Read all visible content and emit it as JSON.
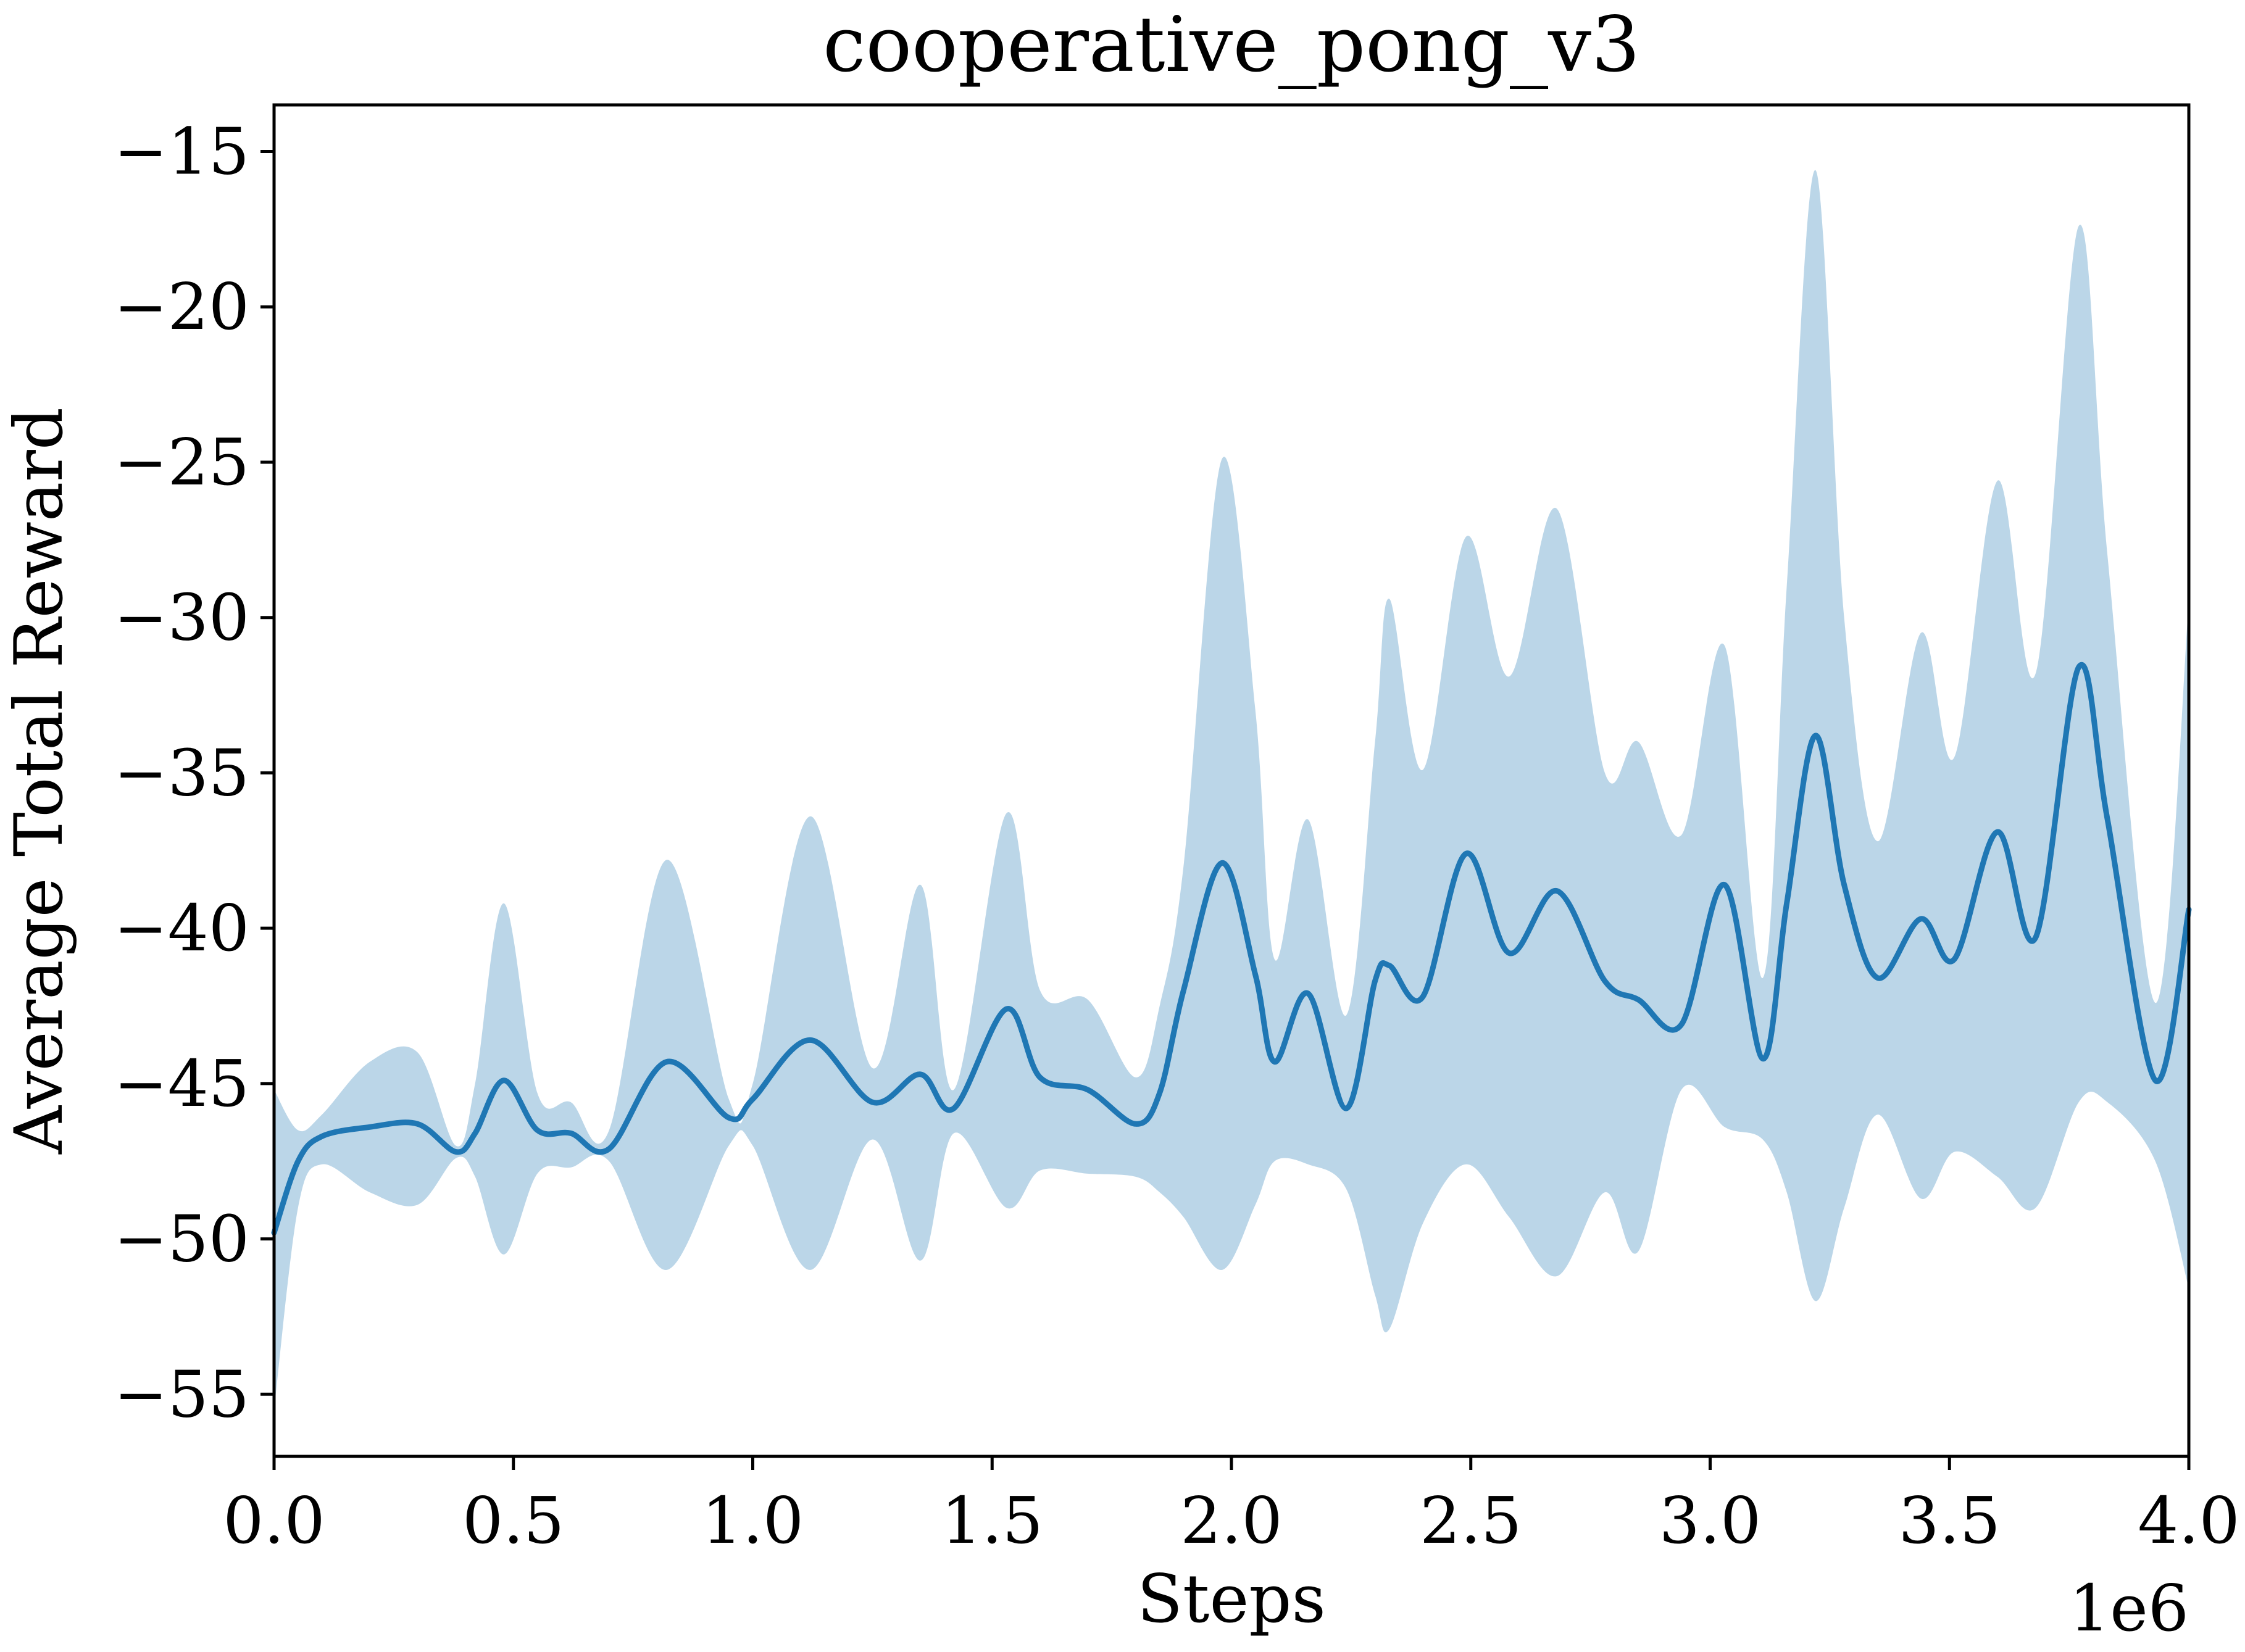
{
  "chart_data": {
    "type": "line",
    "title": "cooperative_pong_v3",
    "xlabel": "Steps",
    "ylabel": "Average Total Reward",
    "x_offset_label": "1e6",
    "xlim": [
      0,
      4000000
    ],
    "ylim": [
      -57,
      -13.5
    ],
    "grid": false,
    "legend": "none",
    "x_ticks": [
      0,
      500000,
      1000000,
      1500000,
      2000000,
      2500000,
      3000000,
      3500000,
      4000000
    ],
    "x_tick_labels": [
      "0.0",
      "0.5",
      "1.0",
      "1.5",
      "2.0",
      "2.5",
      "3.0",
      "3.5",
      "4.0"
    ],
    "y_ticks": [
      -55,
      -50,
      -45,
      -40,
      -35,
      -30,
      -25,
      -20,
      -15
    ],
    "y_tick_labels": [
      "−55",
      "−50",
      "−45",
      "−40",
      "−35",
      "−30",
      "−25",
      "−20",
      "−15"
    ],
    "colors": {
      "line": "#1f77b4",
      "band": "#1f77b4",
      "band_opacity": 0.3
    },
    "series": [
      {
        "x": [
          0,
          50000,
          100000,
          200000,
          300000,
          380000,
          420000,
          480000,
          550000,
          620000,
          700000,
          820000,
          950000,
          1000000,
          1120000,
          1250000,
          1350000,
          1420000,
          1530000,
          1600000,
          1700000,
          1800000,
          1850000,
          1900000,
          1980000,
          2050000,
          2090000,
          2160000,
          2240000,
          2300000,
          2330000,
          2400000,
          2490000,
          2580000,
          2680000,
          2780000,
          2850000,
          2940000,
          3030000,
          3110000,
          3160000,
          3220000,
          3280000,
          3350000,
          3440000,
          3510000,
          3600000,
          3680000,
          3770000,
          3830000,
          3930000,
          4000000
        ],
        "y": [
          -49.8,
          -47.5,
          -46.7,
          -46.4,
          -46.3,
          -47.2,
          -46.6,
          -44.9,
          -46.5,
          -46.6,
          -47.1,
          -44.3,
          -46.1,
          -45.5,
          -43.6,
          -45.6,
          -44.7,
          -45.8,
          -42.6,
          -44.8,
          -45.2,
          -46.3,
          -45.3,
          -42.0,
          -37.9,
          -41.5,
          -44.3,
          -42.1,
          -45.8,
          -41.7,
          -41.2,
          -42.2,
          -37.6,
          -40.8,
          -38.8,
          -41.7,
          -42.3,
          -43.1,
          -38.6,
          -44.2,
          -39.2,
          -33.8,
          -38.6,
          -41.6,
          -39.7,
          -41.0,
          -36.9,
          -40.3,
          -31.6,
          -36.5,
          -44.9,
          -39.4
        ],
        "upper": [
          -45.2,
          -46.5,
          -46.0,
          -44.3,
          -44.0,
          -47.0,
          -45.0,
          -39.2,
          -45.3,
          -45.6,
          -46.5,
          -37.8,
          -45.5,
          -45.0,
          -36.4,
          -44.5,
          -38.6,
          -45.2,
          -36.3,
          -42.0,
          -42.3,
          -44.8,
          -42.5,
          -38.0,
          -24.9,
          -33.0,
          -41.0,
          -36.5,
          -42.8,
          -34.0,
          -29.4,
          -34.9,
          -27.4,
          -31.9,
          -26.5,
          -35.0,
          -34.0,
          -37.0,
          -30.9,
          -41.6,
          -29.0,
          -15.6,
          -30.0,
          -37.2,
          -30.5,
          -34.5,
          -25.6,
          -31.8,
          -17.4,
          -28.0,
          -42.4,
          -29.5
        ],
        "lower": [
          -55.5,
          -49.0,
          -47.6,
          -48.5,
          -48.9,
          -47.4,
          -48.0,
          -50.5,
          -47.9,
          -47.7,
          -47.5,
          -51.0,
          -47.0,
          -47.0,
          -51.0,
          -46.8,
          -50.7,
          -46.6,
          -49.0,
          -47.8,
          -47.9,
          -48.0,
          -48.5,
          -49.3,
          -51.0,
          -48.9,
          -47.5,
          -47.6,
          -48.4,
          -51.8,
          -52.9,
          -49.5,
          -47.6,
          -49.3,
          -51.2,
          -48.5,
          -50.4,
          -45.2,
          -46.4,
          -46.8,
          -48.5,
          -52.0,
          -49.0,
          -46.0,
          -48.7,
          -47.2,
          -48.0,
          -49.0,
          -45.6,
          -45.6,
          -47.5,
          -51.6
        ]
      }
    ]
  }
}
